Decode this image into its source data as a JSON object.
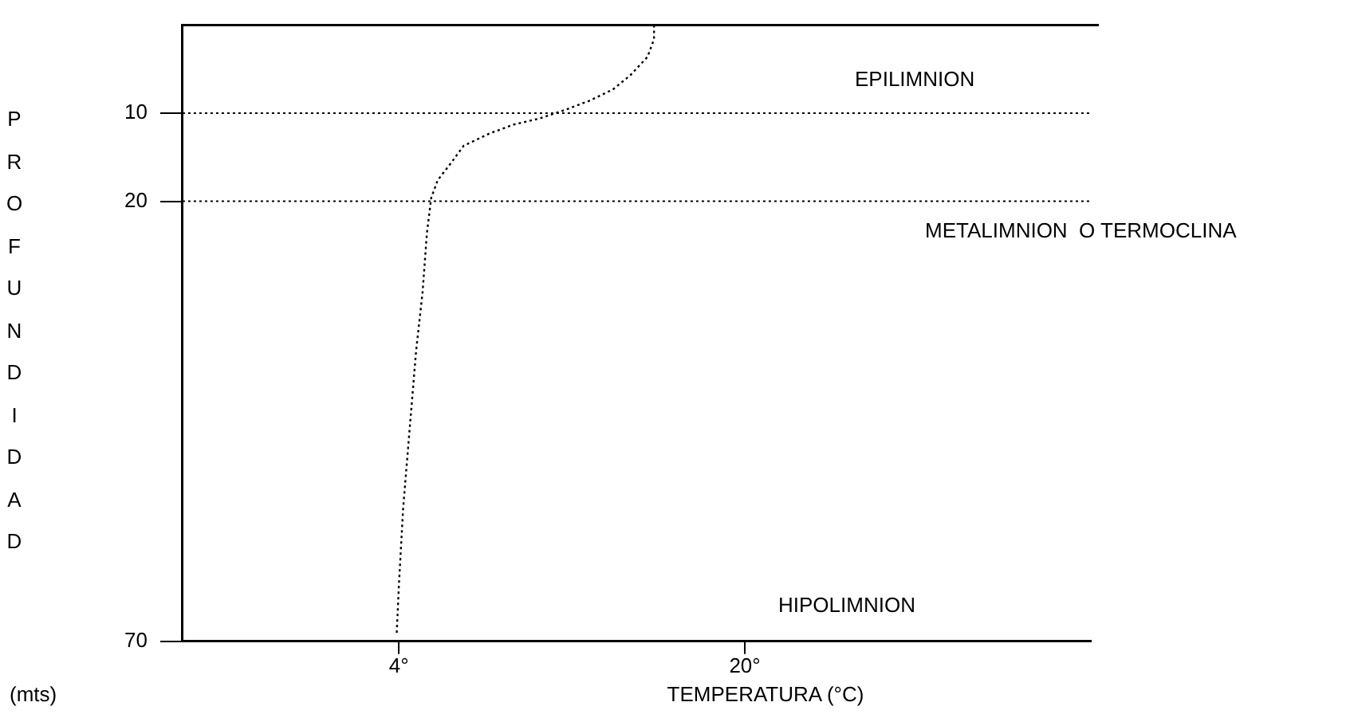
{
  "chart_data": {
    "type": "line",
    "xlabel": "TEMPERATURA (°C)",
    "ylabel": "PROFUNDIDAD",
    "series": [
      {
        "color": "#000000",
        "x": [
          15.8,
          15.8,
          15.5,
          14.7,
          13.9,
          12.8,
          11.6,
          10.5,
          9.3,
          8.2,
          7.0,
          6.4,
          5.8,
          5.5,
          5.3,
          5.1,
          4.8,
          4.5,
          4.2,
          4.0,
          3.9
        ],
        "values": [
          0,
          1.6,
          3.6,
          5.7,
          7.3,
          8.6,
          9.7,
          10.6,
          11.3,
          12.3,
          13.7,
          15.7,
          17.6,
          19.6,
          23.6,
          30.3,
          37.0,
          45.9,
          54.9,
          63.8,
          69.3
        ]
      }
    ],
    "xlim": [
      -6,
      36
    ],
    "xticks": [
      {
        "value": 4,
        "label": "4°"
      },
      {
        "value": 20,
        "label": "20°"
      }
    ],
    "ylim": [
      70,
      0
    ],
    "yticks": [
      10,
      20,
      70
    ],
    "ref_lines": [
      {
        "axis": "y",
        "value": 10,
        "line_style": "dotted"
      },
      {
        "axis": "y",
        "value": 20,
        "line_style": "dotted"
      }
    ],
    "annotations": [
      "EPILIMNION",
      "METALIMNION  O TERMOCLINA",
      "HIPOLIMNION",
      "(mts)"
    ],
    "line_style": "dotted",
    "marker": "none",
    "grid": false,
    "legend": false
  }
}
